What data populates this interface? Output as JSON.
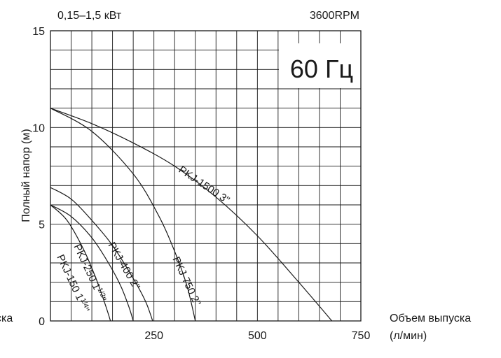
{
  "header": {
    "power_range": "0,15–1,5 кВт",
    "speed": "3600RPM",
    "frequency": "60 Гц"
  },
  "chart_data": {
    "type": "line",
    "xlabel": "Объем выпуска (л/мин)",
    "xlabel_lines": [
      "Объем выпуска",
      "(л/мин)"
    ],
    "cut_xlabel": "ска",
    "ylabel": "Полный напор (м)",
    "xlim": [
      0,
      750
    ],
    "ylim": [
      0,
      15
    ],
    "x_ticks": [
      250,
      500,
      750
    ],
    "y_ticks": [
      0,
      5,
      10,
      15
    ],
    "x_grid_step": 50,
    "y_grid_step": 1,
    "grid": true,
    "series": [
      {
        "name": "PKJ-150 1¼\"",
        "label": {
          "model": "PKJ-150",
          "size": "1",
          "num": "1",
          "den": "4",
          "inch": "\""
        },
        "x": [
          0,
          40,
          80,
          110,
          130,
          140,
          145
        ],
        "y": [
          6.0,
          5.2,
          3.7,
          2.2,
          1.0,
          0.35,
          0
        ]
      },
      {
        "name": "PKJ-250 1½\"",
        "label": {
          "model": "PKJ-250",
          "size": "1",
          "num": "1",
          "den": "2",
          "inch": "\""
        },
        "x": [
          0,
          50,
          100,
          140,
          170,
          190,
          200
        ],
        "y": [
          6.0,
          5.4,
          4.3,
          3.0,
          1.8,
          0.7,
          0
        ]
      },
      {
        "name": "PKJ-400 2\"",
        "label": {
          "text": "PKJ-400 2\""
        },
        "x": [
          0,
          50,
          100,
          150,
          200,
          230,
          247
        ],
        "y": [
          6.9,
          6.3,
          5.2,
          3.9,
          2.2,
          1.0,
          0
        ]
      },
      {
        "name": "PKJ-750 2\"",
        "label": {
          "text": "PKJ-750 2\""
        },
        "x": [
          0,
          100,
          200,
          260,
          300,
          330,
          350
        ],
        "y": [
          11.0,
          9.8,
          7.6,
          5.5,
          3.6,
          1.8,
          0
        ]
      },
      {
        "name": "PKJ-1500 3\"",
        "label": {
          "text": "PKJ-1500 3\""
        },
        "x": [
          0,
          100,
          200,
          300,
          400,
          500,
          600,
          680
        ],
        "y": [
          11.0,
          10.2,
          9.2,
          8.0,
          6.4,
          4.4,
          2.0,
          0
        ]
      }
    ]
  }
}
